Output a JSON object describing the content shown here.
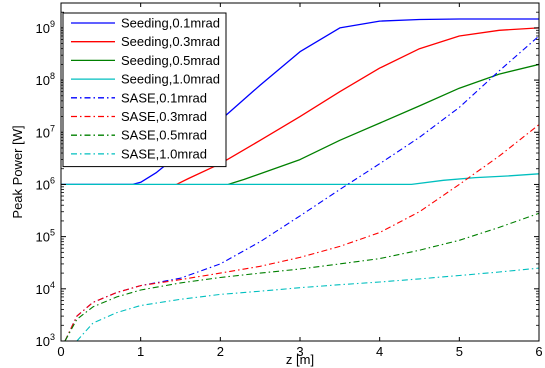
{
  "chart_data": {
    "type": "line",
    "title": "",
    "xlabel": "z [m]",
    "ylabel": "Peak Power [W]",
    "xlim": [
      0,
      6
    ],
    "ylim": [
      1000,
      3000000000
    ],
    "yscale": "log",
    "grid": false,
    "legend_position": "top-left",
    "x_ticks": [
      "0",
      "1",
      "2",
      "3",
      "4",
      "5",
      "6"
    ],
    "y_ticks": [
      {
        "value": 1000,
        "base": "10",
        "exp": "3"
      },
      {
        "value": 10000,
        "base": "10",
        "exp": "4"
      },
      {
        "value": 100000,
        "base": "10",
        "exp": "5"
      },
      {
        "value": 1000000,
        "base": "10",
        "exp": "6"
      },
      {
        "value": 10000000,
        "base": "10",
        "exp": "7"
      },
      {
        "value": 100000000,
        "base": "10",
        "exp": "8"
      },
      {
        "value": 1000000000,
        "base": "10",
        "exp": "9"
      }
    ],
    "series": [
      {
        "name": "Seeding,0.1mrad",
        "color": "#0000ff",
        "dash": "solid",
        "x": [
          0,
          0.9,
          1.0,
          1.2,
          1.5,
          2.0,
          2.5,
          3.0,
          3.5,
          4.0,
          4.5,
          5.0,
          5.5,
          6.0
        ],
        "y": [
          1000000,
          1000000,
          1100000,
          1700000,
          4000000,
          17000000,
          80000000,
          350000000,
          1000000000,
          1350000000,
          1450000000,
          1480000000,
          1480000000,
          1480000000
        ]
      },
      {
        "name": "Seeding,0.3mrad",
        "color": "#ff0000",
        "dash": "solid",
        "x": [
          1.45,
          1.6,
          2.0,
          2.5,
          3.0,
          3.5,
          4.0,
          4.5,
          5.0,
          5.5,
          6.0
        ],
        "y": [
          1000000,
          1300000,
          2500000,
          7000000,
          20000000,
          60000000,
          170000000,
          400000000,
          700000000,
          900000000,
          1000000000
        ]
      },
      {
        "name": "Seeding,0.5mrad",
        "color": "#008000",
        "dash": "solid",
        "x": [
          2.1,
          2.3,
          2.5,
          3.0,
          3.5,
          4.0,
          4.5,
          5.0,
          5.5,
          6.0
        ],
        "y": [
          1000000,
          1250000,
          1600000,
          3000000,
          7000000,
          15000000,
          32000000,
          70000000,
          130000000,
          200000000
        ]
      },
      {
        "name": "Seeding,1.0mrad",
        "color": "#00bfbf",
        "dash": "solid",
        "x": [
          0,
          4.4,
          4.8,
          5.2,
          5.6,
          6.0
        ],
        "y": [
          1000000,
          1000000,
          1200000,
          1350000,
          1450000,
          1600000
        ]
      },
      {
        "name": "SASE,0.1mrad",
        "color": "#0000ff",
        "dash": "dashdot",
        "x": [
          0.05,
          0.2,
          0.4,
          0.7,
          1.0,
          1.5,
          2.0,
          2.5,
          3.0,
          3.5,
          4.0,
          4.5,
          5.0,
          5.5,
          6.0
        ],
        "y": [
          1000,
          3000,
          5500,
          8500,
          11500,
          16000,
          30000,
          80000,
          250000,
          800000,
          2500000,
          8000000,
          30000000,
          150000000,
          700000000
        ]
      },
      {
        "name": "SASE,0.3mrad",
        "color": "#ff0000",
        "dash": "dashdot",
        "x": [
          0.05,
          0.2,
          0.4,
          0.7,
          1.0,
          1.5,
          2.0,
          2.5,
          3.0,
          3.5,
          4.0,
          4.5,
          5.0,
          5.5,
          6.0
        ],
        "y": [
          1000,
          3000,
          5500,
          8500,
          11500,
          15000,
          20000,
          27000,
          40000,
          65000,
          120000,
          300000,
          1000000,
          3500000,
          14000000
        ]
      },
      {
        "name": "SASE,0.5mrad",
        "color": "#008000",
        "dash": "dashdot",
        "x": [
          0.05,
          0.2,
          0.4,
          0.7,
          1.0,
          1.5,
          2.0,
          2.5,
          3.0,
          3.5,
          4.0,
          4.5,
          5.0,
          5.5,
          6.0
        ],
        "y": [
          1000,
          2600,
          4500,
          7000,
          9500,
          13000,
          16500,
          20000,
          24000,
          30000,
          38000,
          55000,
          85000,
          150000,
          280000
        ]
      },
      {
        "name": "SASE,1.0mrad",
        "color": "#00bfbf",
        "dash": "dashdot",
        "x": [
          0.2,
          0.4,
          0.7,
          1.0,
          1.5,
          2.0,
          2.5,
          3.0,
          3.5,
          4.0,
          4.5,
          5.0,
          5.5,
          6.0
        ],
        "y": [
          1000,
          2200,
          3500,
          4800,
          6300,
          7800,
          9000,
          10500,
          12000,
          13500,
          15500,
          18000,
          21000,
          25000
        ]
      }
    ]
  }
}
